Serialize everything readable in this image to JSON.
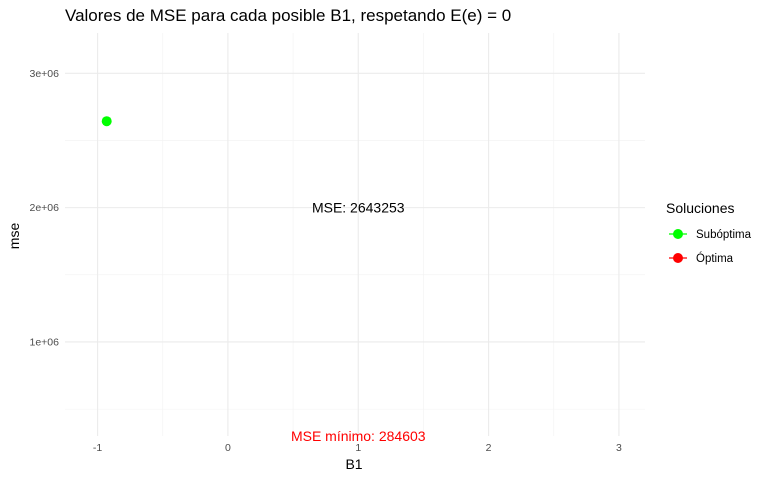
{
  "chart_data": {
    "type": "scatter",
    "title": "Valores de MSE para cada posible B1, respetando E(e) = 0",
    "xlabel": "B1",
    "ylabel": "mse",
    "xlim": [
      -1.25,
      3.2
    ],
    "ylim": [
      300000,
      3300000
    ],
    "x_ticks": [
      -1,
      0,
      1,
      2,
      3
    ],
    "x_tick_labels": [
      "-1",
      "0",
      "1",
      "2",
      "3"
    ],
    "y_ticks": [
      1000000,
      2000000,
      3000000
    ],
    "y_tick_labels": [
      "1e+06",
      "2e+06",
      "3e+06"
    ],
    "grid": true,
    "legend": {
      "title": "Soluciones",
      "position": "right",
      "entries": [
        {
          "label": "Subóptima",
          "color": "#00ff00"
        },
        {
          "label": "Óptima",
          "color": "#ff0000"
        }
      ]
    },
    "series": [
      {
        "name": "Subóptima",
        "color": "#00ff00",
        "points": [
          {
            "x": -0.93,
            "y": 2643253
          }
        ]
      },
      {
        "name": "Óptima",
        "color": "#ff0000",
        "points": []
      }
    ],
    "annotations": [
      {
        "prefix": "MSE:",
        "value": "2643253",
        "x": 1.0,
        "y": 2000000,
        "color": "#000000"
      },
      {
        "prefix": "MSE mínimo:",
        "value": "284603",
        "x": 1.0,
        "y": 300000,
        "color": "#ff0000"
      }
    ]
  }
}
